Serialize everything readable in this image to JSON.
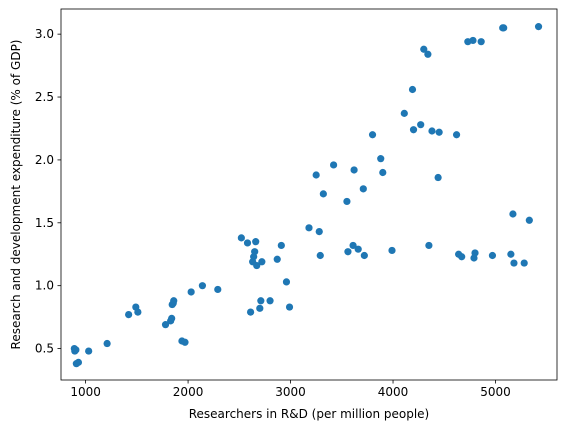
{
  "chart_data": {
    "type": "scatter",
    "title": "",
    "xlabel": "Researchers in R&D (per million people)",
    "ylabel": "Research and development expenditure (% of GDP)",
    "xlim": [
      760,
      5600
    ],
    "ylim": [
      0.25,
      3.2
    ],
    "xticks": [
      1000,
      2000,
      3000,
      4000,
      5000
    ],
    "yticks": [
      0.5,
      1.0,
      1.5,
      2.0,
      2.5,
      3.0
    ],
    "xtick_labels": [
      "1000",
      "2000",
      "3000",
      "4000",
      "5000"
    ],
    "ytick_labels": [
      "0.5",
      "1.0",
      "1.5",
      "2.0",
      "2.5",
      "3.0"
    ],
    "grid": false,
    "marker_color": "#1f77b4",
    "points": [
      {
        "x": 890,
        "y": 0.5
      },
      {
        "x": 895,
        "y": 0.48
      },
      {
        "x": 905,
        "y": 0.49
      },
      {
        "x": 910,
        "y": 0.38
      },
      {
        "x": 930,
        "y": 0.39
      },
      {
        "x": 1030,
        "y": 0.48
      },
      {
        "x": 1210,
        "y": 0.54
      },
      {
        "x": 1420,
        "y": 0.77
      },
      {
        "x": 1490,
        "y": 0.83
      },
      {
        "x": 1510,
        "y": 0.79
      },
      {
        "x": 1780,
        "y": 0.69
      },
      {
        "x": 1830,
        "y": 0.72
      },
      {
        "x": 1840,
        "y": 0.74
      },
      {
        "x": 1845,
        "y": 0.85
      },
      {
        "x": 1855,
        "y": 0.86
      },
      {
        "x": 1860,
        "y": 0.88
      },
      {
        "x": 1940,
        "y": 0.56
      },
      {
        "x": 1970,
        "y": 0.55
      },
      {
        "x": 2030,
        "y": 0.95
      },
      {
        "x": 2140,
        "y": 1.0
      },
      {
        "x": 2290,
        "y": 0.97
      },
      {
        "x": 2520,
        "y": 1.38
      },
      {
        "x": 2580,
        "y": 1.34
      },
      {
        "x": 2610,
        "y": 0.79
      },
      {
        "x": 2630,
        "y": 1.19
      },
      {
        "x": 2640,
        "y": 1.23
      },
      {
        "x": 2650,
        "y": 1.27
      },
      {
        "x": 2660,
        "y": 1.35
      },
      {
        "x": 2670,
        "y": 1.16
      },
      {
        "x": 2700,
        "y": 0.82
      },
      {
        "x": 2710,
        "y": 0.88
      },
      {
        "x": 2720,
        "y": 1.19
      },
      {
        "x": 2800,
        "y": 0.88
      },
      {
        "x": 2870,
        "y": 1.21
      },
      {
        "x": 2910,
        "y": 1.32
      },
      {
        "x": 2960,
        "y": 1.03
      },
      {
        "x": 2990,
        "y": 0.83
      },
      {
        "x": 3180,
        "y": 1.46
      },
      {
        "x": 3250,
        "y": 1.88
      },
      {
        "x": 3280,
        "y": 1.43
      },
      {
        "x": 3290,
        "y": 1.24
      },
      {
        "x": 3320,
        "y": 1.73
      },
      {
        "x": 3420,
        "y": 1.96
      },
      {
        "x": 3550,
        "y": 1.67
      },
      {
        "x": 3560,
        "y": 1.27
      },
      {
        "x": 3610,
        "y": 1.32
      },
      {
        "x": 3620,
        "y": 1.92
      },
      {
        "x": 3660,
        "y": 1.29
      },
      {
        "x": 3710,
        "y": 1.77
      },
      {
        "x": 3720,
        "y": 1.24
      },
      {
        "x": 3800,
        "y": 2.2
      },
      {
        "x": 3880,
        "y": 2.01
      },
      {
        "x": 3900,
        "y": 1.9
      },
      {
        "x": 3990,
        "y": 1.28
      },
      {
        "x": 4110,
        "y": 2.37
      },
      {
        "x": 4190,
        "y": 2.56
      },
      {
        "x": 4200,
        "y": 2.24
      },
      {
        "x": 4270,
        "y": 2.28
      },
      {
        "x": 4300,
        "y": 2.88
      },
      {
        "x": 4340,
        "y": 2.84
      },
      {
        "x": 4350,
        "y": 1.32
      },
      {
        "x": 4380,
        "y": 2.23
      },
      {
        "x": 4440,
        "y": 1.86
      },
      {
        "x": 4450,
        "y": 2.22
      },
      {
        "x": 4620,
        "y": 2.2
      },
      {
        "x": 4640,
        "y": 1.25
      },
      {
        "x": 4670,
        "y": 1.23
      },
      {
        "x": 4730,
        "y": 2.94
      },
      {
        "x": 4780,
        "y": 2.95
      },
      {
        "x": 4790,
        "y": 1.22
      },
      {
        "x": 4800,
        "y": 1.26
      },
      {
        "x": 4860,
        "y": 2.94
      },
      {
        "x": 4970,
        "y": 1.24
      },
      {
        "x": 5070,
        "y": 3.05
      },
      {
        "x": 5080,
        "y": 3.05
      },
      {
        "x": 5150,
        "y": 1.25
      },
      {
        "x": 5170,
        "y": 1.57
      },
      {
        "x": 5180,
        "y": 1.18
      },
      {
        "x": 5280,
        "y": 1.18
      },
      {
        "x": 5330,
        "y": 1.52
      },
      {
        "x": 5420,
        "y": 3.06
      }
    ]
  }
}
